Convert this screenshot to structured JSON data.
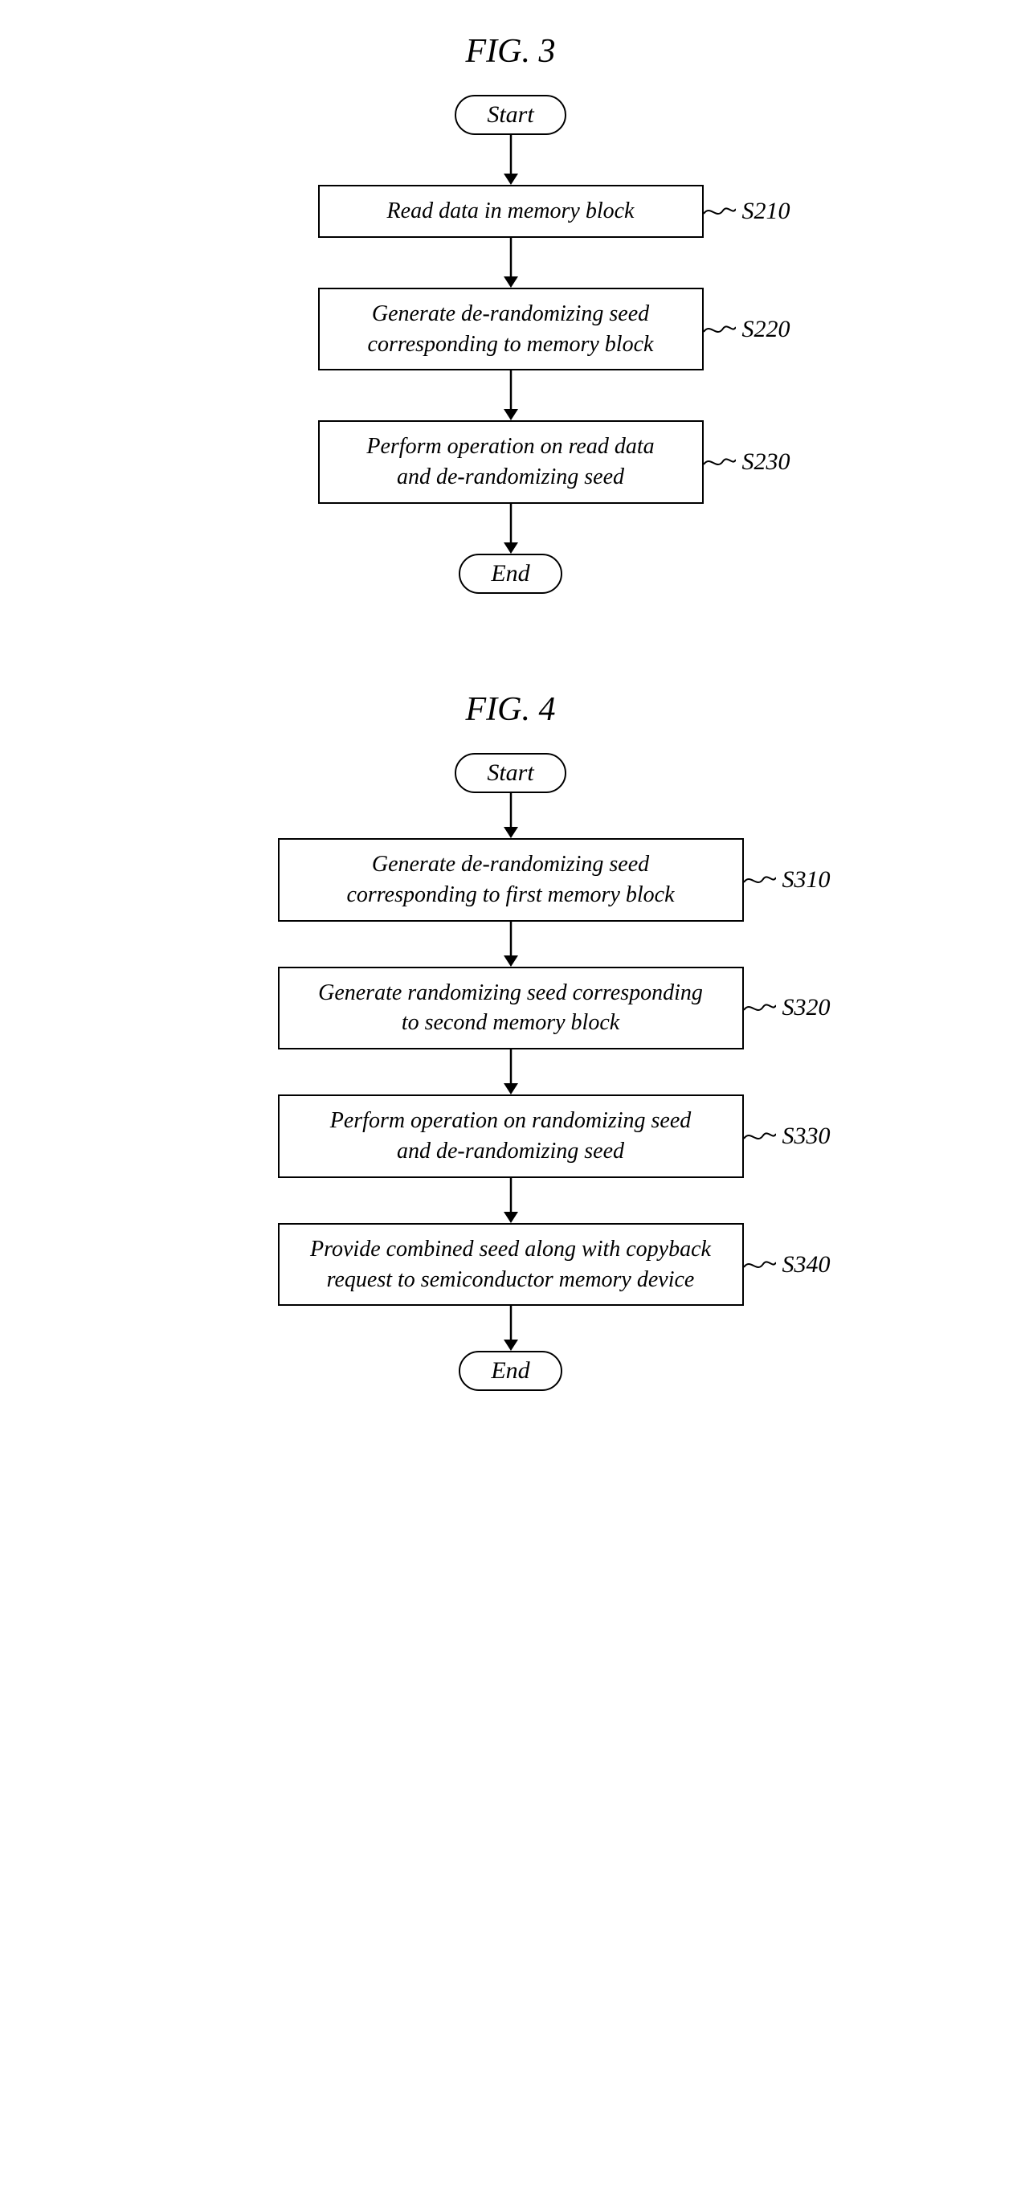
{
  "figures": [
    {
      "title": "FIG. 3",
      "start": "Start",
      "end": "End",
      "boxWidthClass": "",
      "arrowHeight": 62,
      "steps": [
        {
          "label": "S210",
          "lines": [
            "Read data in memory block"
          ]
        },
        {
          "label": "S220",
          "lines": [
            "Generate de-randomizing seed",
            "corresponding to memory block"
          ]
        },
        {
          "label": "S230",
          "lines": [
            "Perform operation on read data",
            "and de-randomizing seed"
          ]
        }
      ]
    },
    {
      "title": "FIG. 4",
      "start": "Start",
      "end": "End",
      "boxWidthClass": "wide",
      "arrowHeight": 56,
      "steps": [
        {
          "label": "S310",
          "lines": [
            "Generate de-randomizing seed",
            "corresponding to first memory block"
          ]
        },
        {
          "label": "S320",
          "lines": [
            "Generate randomizing seed corresponding",
            "to second memory block"
          ]
        },
        {
          "label": "S330",
          "lines": [
            "Perform operation on randomizing seed",
            "and de-randomizing seed"
          ]
        },
        {
          "label": "S340",
          "lines": [
            "Provide combined seed along with copyback",
            "request to semiconductor memory device"
          ]
        }
      ]
    }
  ],
  "style": {
    "stroke": "#000000",
    "strokeWidth": 2.5,
    "arrowHeadW": 9,
    "arrowHeadH": 14,
    "background": "#ffffff"
  }
}
